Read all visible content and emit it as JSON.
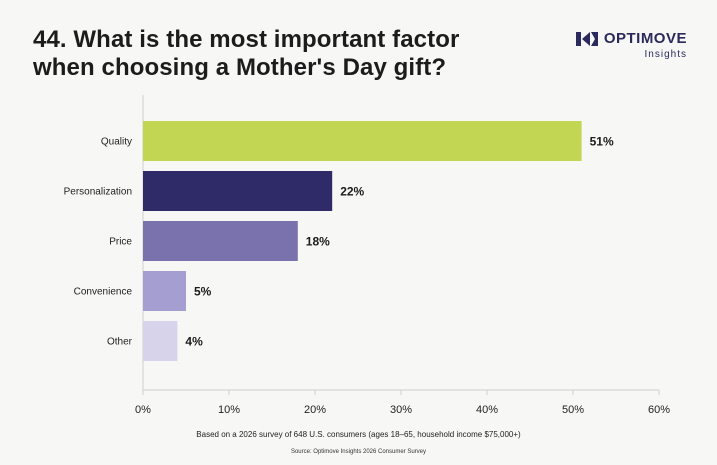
{
  "title": {
    "line1": "44. What is the most important factor",
    "line2": "when choosing a Mother's Day gift?"
  },
  "logo": {
    "name": "OPTIMOVE",
    "sub": "Insights",
    "mark_icon": "optimove-logo-icon"
  },
  "footnote": "Based on a 2026 survey of 648 U.S. consumers (ages 18–65, household income $75,000+)",
  "source": "Source: Optimove Insights 2026 Consumer Survey",
  "chart_data": {
    "type": "bar",
    "orientation": "horizontal",
    "title": "44. What is the most important factor when choosing a Mother's Day gift?",
    "categories": [
      "Quality",
      "Personalization",
      "Price",
      "Convenience",
      "Other"
    ],
    "values": [
      51,
      22,
      18,
      5,
      4
    ],
    "value_labels": [
      "51%",
      "22%",
      "18%",
      "5%",
      "4%"
    ],
    "colors": [
      "#c3d654",
      "#2f2a68",
      "#7a72ad",
      "#a59fd1",
      "#d6d3ea"
    ],
    "xlim": [
      0,
      60
    ],
    "xticks": [
      0,
      10,
      20,
      30,
      40,
      50,
      60
    ],
    "xtick_labels": [
      "0%",
      "10%",
      "20%",
      "30%",
      "40%",
      "50%",
      "60%"
    ],
    "xlabel": "",
    "ylabel": "",
    "grid": false
  }
}
